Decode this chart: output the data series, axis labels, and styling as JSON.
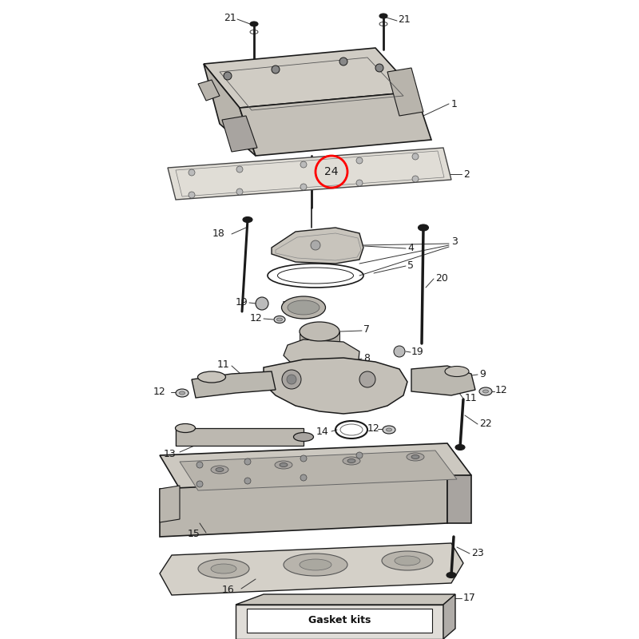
{
  "bg_color": "#ffffff",
  "fig_width": 8.0,
  "fig_height": 8.0,
  "dpi": 100,
  "dark": "#1a1a1a",
  "gray_light": "#c8c4bc",
  "gray_mid": "#a8a4a0",
  "gray_dark": "#888480"
}
